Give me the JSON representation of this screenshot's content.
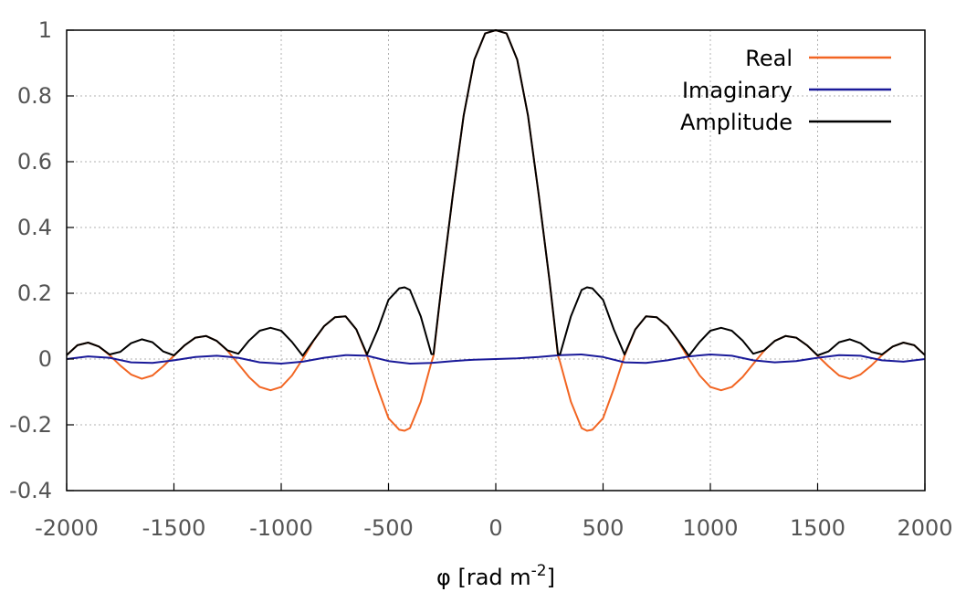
{
  "chart_data": {
    "type": "line",
    "xlabel": {
      "base": "φ [rad m",
      "sup": "-2",
      "close": "]"
    },
    "ylabel": "",
    "xlim": [
      -2000,
      2000
    ],
    "ylim": [
      -0.4,
      1
    ],
    "xticks": [
      -2000,
      -1500,
      -1000,
      -500,
      0,
      500,
      1000,
      1500,
      2000
    ],
    "yticks": [
      -0.4,
      -0.2,
      0,
      0.2,
      0.4,
      0.6,
      0.8,
      1
    ],
    "xtick_labels": [
      "-2000",
      "-1500",
      "-1000",
      "-500",
      "0",
      "500",
      "1000",
      "1500",
      "2000"
    ],
    "ytick_labels": [
      "-0.4",
      "-0.2",
      "0",
      "0.2",
      "0.4",
      "0.6",
      "0.8",
      "1"
    ],
    "grid": true,
    "legend_position": "top-right",
    "series": [
      {
        "name": "Real",
        "color": "#f26522",
        "x": [
          -2000,
          -1950,
          -1900,
          -1850,
          -1800,
          -1750,
          -1700,
          -1650,
          -1600,
          -1550,
          -1500,
          -1450,
          -1400,
          -1350,
          -1300,
          -1250,
          -1200,
          -1150,
          -1100,
          -1050,
          -1000,
          -950,
          -900,
          -850,
          -800,
          -750,
          -700,
          -650,
          -600,
          -550,
          -500,
          -450,
          -425,
          -400,
          -350,
          -300,
          -290,
          -250,
          -200,
          -150,
          -100,
          -50,
          0,
          50,
          100,
          150,
          200,
          250,
          290,
          300,
          350,
          400,
          425,
          450,
          500,
          550,
          600,
          650,
          700,
          750,
          800,
          850,
          900,
          950,
          1000,
          1050,
          1100,
          1150,
          1200,
          1250,
          1300,
          1350,
          1400,
          1450,
          1500,
          1550,
          1600,
          1650,
          1700,
          1750,
          1800,
          1850,
          1900,
          1950,
          2000
        ],
        "y": [
          0.012,
          0.042,
          0.05,
          0.038,
          0.012,
          -0.02,
          -0.047,
          -0.06,
          -0.05,
          -0.022,
          0.01,
          0.042,
          0.065,
          0.07,
          0.055,
          0.025,
          -0.015,
          -0.055,
          -0.085,
          -0.095,
          -0.085,
          -0.05,
          0.0,
          0.055,
          0.1,
          0.127,
          0.13,
          0.09,
          0.01,
          -0.09,
          -0.18,
          -0.215,
          -0.218,
          -0.21,
          -0.13,
          -0.01,
          0.01,
          0.24,
          0.5,
          0.74,
          0.91,
          0.99,
          1.0,
          0.99,
          0.91,
          0.74,
          0.5,
          0.24,
          0.01,
          -0.01,
          -0.13,
          -0.21,
          -0.218,
          -0.215,
          -0.18,
          -0.09,
          0.01,
          0.09,
          0.13,
          0.127,
          0.1,
          0.055,
          0.0,
          -0.05,
          -0.085,
          -0.095,
          -0.085,
          -0.055,
          -0.015,
          0.025,
          0.055,
          0.07,
          0.065,
          0.042,
          0.01,
          -0.022,
          -0.05,
          -0.06,
          -0.047,
          -0.02,
          0.012,
          0.038,
          0.05,
          0.042,
          0.012
        ]
      },
      {
        "name": "Imaginary",
        "color": "#1a1a99",
        "x": [
          -2000,
          -1900,
          -1800,
          -1700,
          -1600,
          -1500,
          -1400,
          -1300,
          -1200,
          -1100,
          -1000,
          -900,
          -800,
          -700,
          -600,
          -500,
          -400,
          -300,
          -200,
          -100,
          0,
          100,
          200,
          300,
          400,
          500,
          600,
          700,
          800,
          900,
          1000,
          1100,
          1200,
          1300,
          1400,
          1500,
          1600,
          1700,
          1800,
          1900,
          2000
        ],
        "y": [
          0.0,
          0.008,
          0.004,
          -0.01,
          -0.012,
          -0.004,
          0.006,
          0.01,
          0.004,
          -0.01,
          -0.014,
          -0.008,
          0.004,
          0.012,
          0.01,
          -0.006,
          -0.014,
          -0.012,
          -0.006,
          -0.002,
          0.0,
          0.002,
          0.006,
          0.012,
          0.014,
          0.006,
          -0.01,
          -0.012,
          -0.004,
          0.008,
          0.014,
          0.01,
          -0.004,
          -0.01,
          -0.006,
          0.004,
          0.012,
          0.01,
          -0.004,
          -0.008,
          0.0
        ]
      },
      {
        "name": "Amplitude",
        "color": "#000000",
        "x": [
          -2000,
          -1950,
          -1900,
          -1850,
          -1800,
          -1750,
          -1700,
          -1650,
          -1600,
          -1550,
          -1500,
          -1450,
          -1400,
          -1350,
          -1300,
          -1250,
          -1200,
          -1150,
          -1100,
          -1050,
          -1000,
          -950,
          -900,
          -850,
          -800,
          -750,
          -700,
          -650,
          -600,
          -550,
          -500,
          -450,
          -425,
          -400,
          -350,
          -300,
          -290,
          -250,
          -200,
          -150,
          -100,
          -50,
          0,
          50,
          100,
          150,
          200,
          250,
          290,
          300,
          350,
          400,
          425,
          450,
          500,
          550,
          600,
          650,
          700,
          750,
          800,
          850,
          900,
          950,
          1000,
          1050,
          1100,
          1150,
          1200,
          1250,
          1300,
          1350,
          1400,
          1450,
          1500,
          1550,
          1600,
          1650,
          1700,
          1750,
          1800,
          1850,
          1900,
          1950,
          2000
        ],
        "y": [
          0.012,
          0.042,
          0.05,
          0.038,
          0.014,
          0.022,
          0.048,
          0.06,
          0.051,
          0.023,
          0.011,
          0.042,
          0.065,
          0.07,
          0.055,
          0.026,
          0.016,
          0.056,
          0.086,
          0.095,
          0.086,
          0.052,
          0.01,
          0.056,
          0.1,
          0.127,
          0.13,
          0.09,
          0.014,
          0.09,
          0.18,
          0.215,
          0.218,
          0.21,
          0.13,
          0.015,
          0.015,
          0.24,
          0.5,
          0.74,
          0.91,
          0.99,
          1.0,
          0.99,
          0.91,
          0.74,
          0.5,
          0.24,
          0.015,
          0.015,
          0.13,
          0.21,
          0.218,
          0.215,
          0.18,
          0.09,
          0.014,
          0.09,
          0.13,
          0.127,
          0.1,
          0.056,
          0.01,
          0.052,
          0.086,
          0.095,
          0.086,
          0.056,
          0.016,
          0.026,
          0.055,
          0.07,
          0.065,
          0.042,
          0.011,
          0.023,
          0.051,
          0.06,
          0.048,
          0.022,
          0.014,
          0.038,
          0.05,
          0.042,
          0.012
        ]
      }
    ]
  }
}
